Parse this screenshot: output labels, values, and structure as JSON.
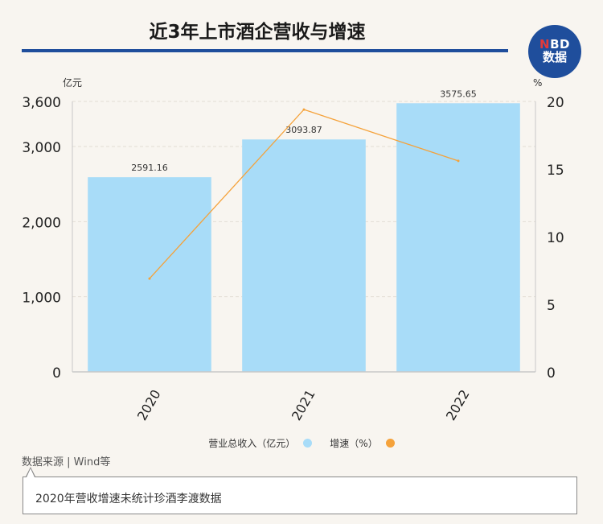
{
  "header": {
    "title": "近3年上市酒企营收与增速"
  },
  "logo": {
    "line1_a": "N",
    "line1_b": "BD",
    "line2": "数据"
  },
  "chart_data": {
    "type": "bar",
    "categories": [
      "2020",
      "2021",
      "2022"
    ],
    "series": [
      {
        "name": "营业总收入（亿元）",
        "type": "bar",
        "axis": "left",
        "values": [
          2591.16,
          3093.87,
          3575.65
        ],
        "color": "#a8dcf8"
      },
      {
        "name": "增速（%）",
        "type": "line",
        "axis": "right",
        "values": [
          6.9,
          19.4,
          15.6
        ],
        "color": "#f5a23a"
      }
    ],
    "data_labels": [
      "2591.16",
      "3093.87",
      "3575.65"
    ],
    "ylabel_left": "亿元",
    "ylabel_right": "%",
    "ylim_left": [
      0,
      3600
    ],
    "yticks_left": [
      0,
      1000,
      2000,
      3000,
      3600
    ],
    "yticks_left_labels": [
      "0",
      "1,000",
      "2,000",
      "3,000",
      "3,600"
    ],
    "ylim_right": [
      0,
      20
    ],
    "yticks_right": [
      0,
      5,
      10,
      15,
      20
    ],
    "yticks_right_labels": [
      "0",
      "5",
      "10",
      "15",
      "20"
    ],
    "grid": true,
    "legend": "bottom"
  },
  "footer": {
    "source": "数据来源 | Wind等",
    "note": "2020年营收增速未统计珍酒李渡数据"
  },
  "colors": {
    "brand": "#1f4e9c",
    "bar": "#a8dcf8",
    "line": "#f5a23a"
  }
}
